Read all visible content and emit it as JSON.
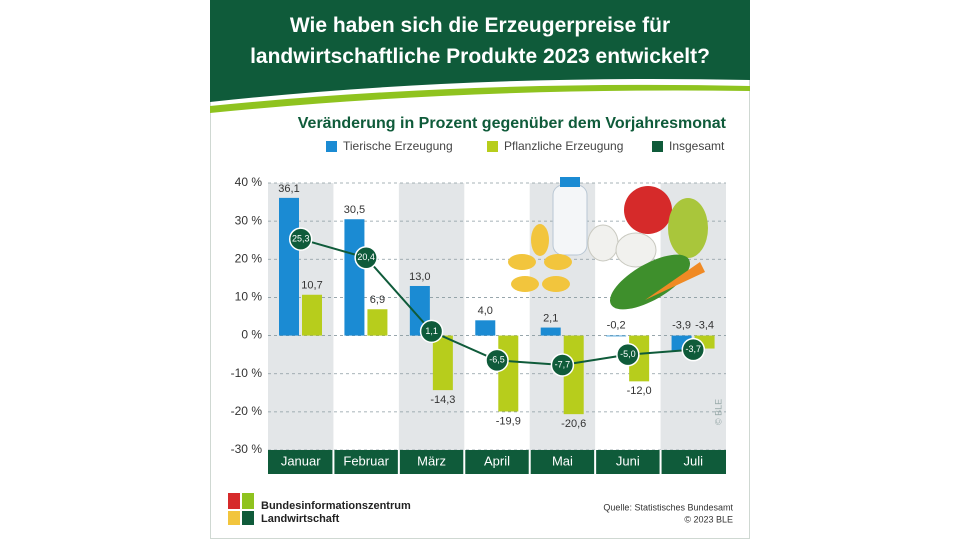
{
  "chart_data": {
    "type": "bar",
    "title": "Wie haben sich die Erzeugerpreise für landwirtschaftliche Produkte 2023 entwickelt?",
    "subtitle": "Veränderung in Prozent gegenüber dem Vorjahresmonat",
    "categories": [
      "Januar",
      "Februar",
      "März",
      "April",
      "Mai",
      "Juni",
      "Juli"
    ],
    "series": [
      {
        "name": "Tierische Erzeugung",
        "color": "#1b8bd3",
        "type": "bar",
        "values": [
          36.1,
          30.5,
          13.0,
          4.0,
          2.1,
          -0.2,
          -3.9
        ],
        "value_labels": [
          "36,1",
          "30,5",
          "13,0",
          "4,0",
          "2,1",
          "-0,2",
          "-3,9"
        ]
      },
      {
        "name": "Pflanzliche Erzeugung",
        "color": "#b7cd1c",
        "type": "bar",
        "values": [
          10.7,
          6.9,
          -14.3,
          -19.9,
          -20.6,
          -12.0,
          -3.4
        ],
        "value_labels": [
          "10,7",
          "6,9",
          "-14,3",
          "-19,9",
          "-20,6",
          "-12,0",
          "-3,4"
        ]
      },
      {
        "name": "Insgesamt",
        "color": "#0f5b3a",
        "type": "line",
        "values": [
          25.3,
          20.4,
          1.1,
          -6.5,
          -7.7,
          -5.0,
          -3.7
        ],
        "value_labels": [
          "25,3",
          "20,4",
          "1,1",
          "-6,5",
          "-7,7",
          "-5,0",
          "-3,7"
        ]
      }
    ],
    "ylim": [
      -30,
      40
    ],
    "yticks": [
      {
        "value": -30,
        "label": "-30 %"
      },
      {
        "value": -20,
        "label": "-20 %"
      },
      {
        "value": -10,
        "label": "-10 %"
      },
      {
        "value": 0,
        "label": "0 %"
      },
      {
        "value": 10,
        "label": "10 %"
      },
      {
        "value": 20,
        "label": "20 %"
      },
      {
        "value": 30,
        "label": "30 %"
      },
      {
        "value": 40,
        "label": "40 %"
      }
    ],
    "grid": true,
    "legend": "top",
    "watermark": "© BLE",
    "publisher": [
      "Bundesinformationszentrum",
      "Landwirtschaft"
    ],
    "source": "Quelle: Statistisches Bundesamt",
    "copyright": "© 2023 BLE"
  }
}
